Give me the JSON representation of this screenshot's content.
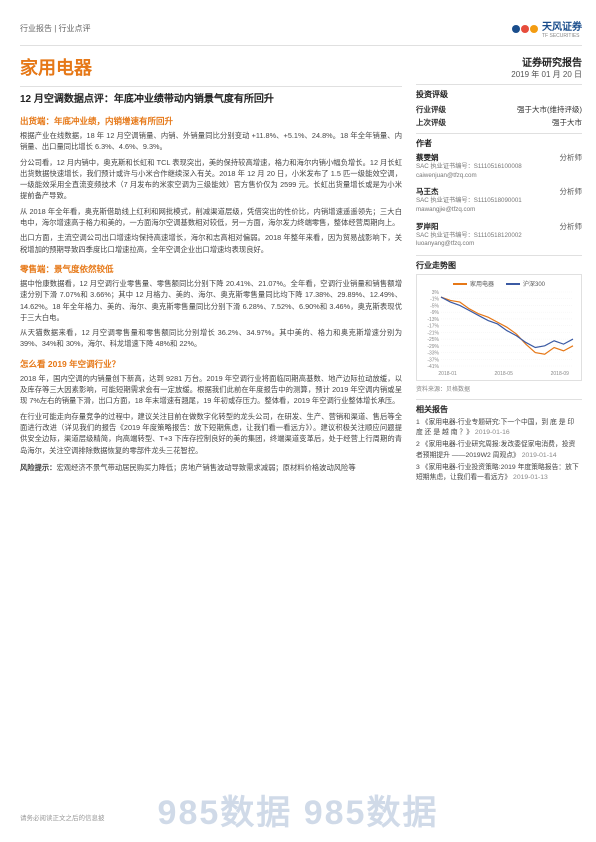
{
  "header": {
    "doc_type": "行业报告 | 行业点评",
    "logo_main": "天风证券",
    "logo_sub": "TF SECURITIES"
  },
  "title": "家用电器",
  "subtitle": "12 月空调数据点评：年底冲业绩带动内销景气度有所回升",
  "sections": [
    {
      "heading": "出货端：年底冲业绩，内销增速有所回升",
      "paragraphs": [
        "根据产业在线数据，18 年 12 月空调销量、内销、外销量同比分别变动 +11.8%、+5.1%、24.8%。18 年全年销量、内销量、出口量同比增长 6.3%、4.6%、9.3%。",
        "分公司看，12 月内销中，奥克斯和长虹和 TCL 表现突出，美的保持较高增速，格力和海尔内销小幅负增长。12 月长虹出货数据快速增长，我们预计或许与小米合作继续深入有关。2018 年 12 月 20 日，小米发布了 1.5 匹一级能效空调，一级能效采用全直流变频技术（7 月发布的米家空调为三级能效）官方售价仅为 2599 元。长虹出货量增长或是为小米提前备产导致。",
        "从 2018 年全年看，奥克斯借助线上红利和网批模式，削减渠道层级，凭借突出的性价比，内销增速遥遥领先；三大白电中，海尔增速高于格力和美的，一方面海尔空调基数相对较低，另一方面，海尔发力终端零售，整体经营周期向上。",
        "出口方面，主流空调公司出口增速均保持高速增长，海尔和志高相对偏弱。2018 年整年来看，因为贸易战影响下，关税增加的预期导致四季度比口增速拉高，全年空调企业出口增速均表现良好。"
      ]
    },
    {
      "heading": "零售端：景气度依然较低",
      "paragraphs": [
        "据中怡康数据看，12 月空调行业零售量、零售额同比分别下降 20.41%、21.07%。全年看，空调行业销量和销售额增速分别下滑 7.07%和 3.66%；其中 12 月格力、美的、海尔、奥克斯零售量同比均下降 17.38%、29.89%、12.49%、14.62%。18 年全年格力、美的、海尔、奥克斯零售量同比分别下滑 6.28%、7.52%、6.90%和 3.46%，奥克斯表现优于三大白电。",
        "从天猫数据来看，12 月空调零售量和零售额同比分别增长 36.2%、34.97%。其中美的、格力和奥克斯增速分别为 39%、34%和 30%，海尔、科龙增速下降 48%和 22%。"
      ]
    },
    {
      "heading": "怎么看 2019 年空调行业？",
      "paragraphs": [
        "2018 年，国内空调的内销量创下新高，达到 9281 万台。2019 年空调行业将面临同期高基数、地产边际拉动放缓，以及库存等三大因素影响，可能短期需求会有一定放缓。根据我们此前在年度报告中的测算，预计 2019 年空调内销或呈现 7%左右的销量下滑，出口方面，18 年末增速有翘尾，19 年初或存压力。整体看，2019 年空调行业整体增长承压。",
        "在行业可能走向存量竞争的过程中，建议关注目前在做数字化转型的龙头公司，在研发、生产、营销和渠道、售后等全面进行改进（详见我们的报告《2019 年度策略报告：放下短期焦虑，让我们看一看远方》）。建议积极关注顺应问题提供安全边际，渠道层级精简，向高端转型、T+3 下库存控制良好的美的集团，终端渠道变革后，处于经营上行周期的青岛海尔，关注空调排除数据恢复的零部件龙头三花智控。"
      ]
    }
  ],
  "risk": {
    "heading": "风险提示：",
    "text": "宏观经济不景气带动居民购买力降低；房地产销售波动导致需求减弱；原材料价格波动风险等"
  },
  "right_panel": {
    "report_type": "证券研究报告",
    "date": "2019 年 01 月 20 日",
    "rating_title": "投资评级",
    "rating_rows": [
      {
        "label": "行业评级",
        "value": "强于大市(维持评级)"
      },
      {
        "label": "上次评级",
        "value": "强于大市"
      }
    ],
    "authors_title": "作者",
    "authors": [
      {
        "name": "蔡雯娟",
        "role": "分析师",
        "sac": "SAC 执业证书编号：S1110516100008",
        "email": "caiwenjuan@tfzq.com"
      },
      {
        "name": "马王杰",
        "role": "分析师",
        "sac": "SAC 执业证书编号：S1110518090001",
        "email": "mawangjie@tfzq.com"
      },
      {
        "name": "罗岸阳",
        "role": "分析师",
        "sac": "SAC 执业证书编号：S1110518120002",
        "email": "luoanyang@tfzq.com"
      }
    ],
    "chart_title": "行业走势图",
    "chart": {
      "type": "line",
      "series": [
        {
          "name": "家用电器",
          "color": "#e67817"
        },
        {
          "name": "沪深300",
          "color": "#3b5aa3"
        }
      ],
      "ylim": [
        -41,
        3
      ],
      "yticks": [
        "3%",
        "-1%",
        "-5%",
        "-9%",
        "-13%",
        "-17%",
        "-21%",
        "-25%",
        "-29%",
        "-33%",
        "-37%",
        "-41%"
      ],
      "xticks": [
        "2018-01",
        "2018-05",
        "2018-09"
      ],
      "background_color": "#ffffff",
      "grid_color": "#eeeeee",
      "label_fontsize": 5,
      "series_a_points": [
        0,
        -2,
        -3,
        -7,
        -10,
        -12,
        -15,
        -18,
        -22,
        -28,
        -33,
        -34,
        -30,
        -32,
        -29
      ],
      "series_b_points": [
        0,
        -3,
        -5,
        -8,
        -11,
        -14,
        -16,
        -20,
        -23,
        -27,
        -30,
        -29,
        -26,
        -28,
        -25
      ]
    },
    "chart_source": "资料来源：贝格数据",
    "related_title": "相关报告",
    "related": [
      {
        "text": "1 《家用电器-行业专题研究:下一个中国，到 底 是 印 度 还 是 越 南 ？》",
        "date": "2019-01-16"
      },
      {
        "text": "2 《家用电器-行业研究周报:发改委促家电消费，投资者预期提升 ——2019W2 周观点》",
        "date": "2019-01-14"
      },
      {
        "text": "3 《家用电器-行业投资策略:2019 年度策略报告：放下短期焦虑，让我们看一看远方》",
        "date": "2019-01-13"
      }
    ]
  },
  "footer_note": "请务必阅读正文之后的信息披",
  "watermark": "985数据 985数据"
}
